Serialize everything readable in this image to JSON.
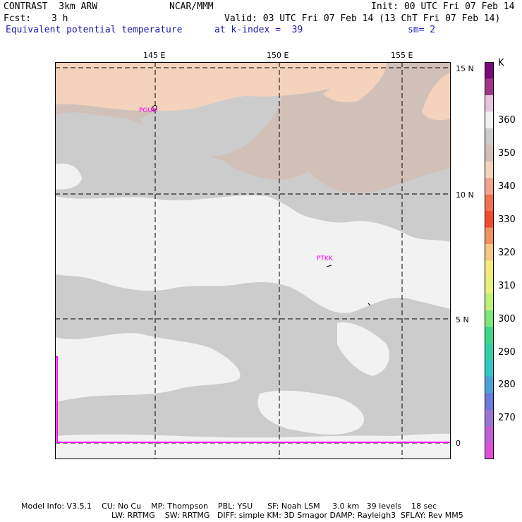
{
  "header": {
    "model": "CONTRAST  3km ARW",
    "org": "NCAR/MMM",
    "init": "Init: 00 UTC Fri 07 Feb 14",
    "fcst_label": "Fcst:",
    "fcst_value": "3 h",
    "valid": "Valid: 03 UTC Fri 07 Feb 14 (13 ChT Fri 07 Feb 14)",
    "field": "Equivalent potential temperature",
    "level": "at k-index =  39",
    "smooth": "sm= 2"
  },
  "map": {
    "lon_ticks": [
      "145 E",
      "150 E",
      "155 E"
    ],
    "lat_ticks": [
      "15 N",
      "10 N",
      "5 N",
      "0"
    ],
    "stations": [
      "PGUM",
      "PTKK"
    ]
  },
  "colorbar": {
    "unit": "K",
    "labels": [
      "360",
      "350",
      "340",
      "330",
      "320",
      "310",
      "300",
      "290",
      "280",
      "270"
    ],
    "colors": [
      "#7a0a7a",
      "#a0358a",
      "#e6c6df",
      "#f2f2f2",
      "#cccccc",
      "#d0c0b8",
      "#f4d2bc",
      "#f3a48c",
      "#f57050",
      "#f54a30",
      "#f59060",
      "#f6c882",
      "#f6ea7a",
      "#e6f27a",
      "#bff07a",
      "#7de87a",
      "#3dd88a",
      "#2fd2a8",
      "#2fc8c8",
      "#4aa2d8",
      "#6a7ae0",
      "#9a76d4",
      "#c060d6",
      "#e050d8"
    ]
  },
  "footer": {
    "line1": "Model Info: V3.5.1    CU: No Cu    MP: Thompson    PBL: YSU      SF: Noah LSM     3.0 km   39 levels    18 sec",
    "line2": "LW: RRTMG    SW: RRTMG   DIFF: simple KM: 3D Smagor DAMP: Rayleigh3  SFLAY: Rev MM5"
  }
}
